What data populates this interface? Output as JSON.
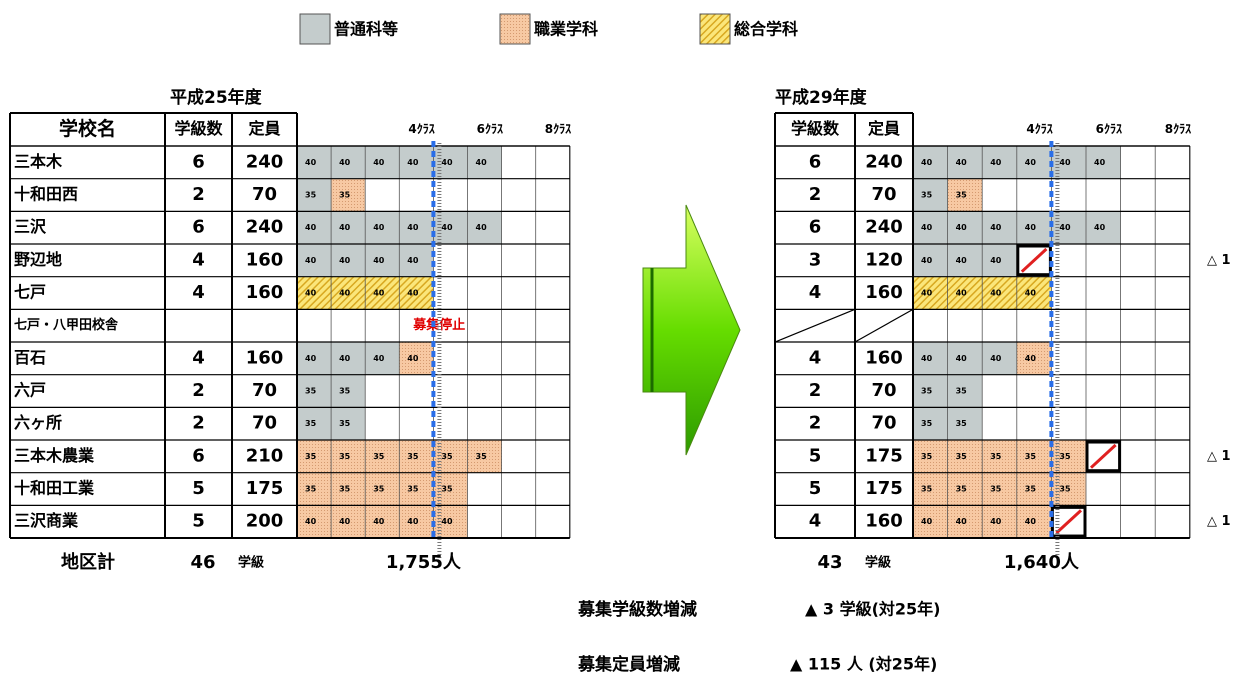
{
  "legend": [
    "普通科等",
    "職業学科",
    "総合学科"
  ],
  "left": {
    "year": "平成25年度",
    "headers": [
      "学校名",
      "学級数",
      "定員"
    ],
    "class_marks": [
      "4ｸﾗｽ",
      "6ｸﾗｽ",
      "8ｸﾗｽ"
    ],
    "rows": [
      {
        "name": "三本木",
        "classes": 6,
        "capacity": 240,
        "cells": [
          {
            "value": 40,
            "kind": 0
          },
          {
            "value": 40,
            "kind": 0
          },
          {
            "value": 40,
            "kind": 0
          },
          {
            "value": 40,
            "kind": 0
          },
          {
            "value": 40,
            "kind": 0
          },
          {
            "value": 40,
            "kind": 0
          }
        ]
      },
      {
        "name": "十和田西",
        "classes": 2,
        "capacity": 70,
        "cells": [
          {
            "value": 35,
            "kind": 0
          },
          {
            "value": 35,
            "kind": 1
          }
        ]
      },
      {
        "name": "三沢",
        "classes": 6,
        "capacity": 240,
        "cells": [
          {
            "value": 40,
            "kind": 0
          },
          {
            "value": 40,
            "kind": 0
          },
          {
            "value": 40,
            "kind": 0
          },
          {
            "value": 40,
            "kind": 0
          },
          {
            "value": 40,
            "kind": 0
          },
          {
            "value": 40,
            "kind": 0
          }
        ]
      },
      {
        "name": "野辺地",
        "classes": 4,
        "capacity": 160,
        "cells": [
          {
            "value": 40,
            "kind": 0
          },
          {
            "value": 40,
            "kind": 0
          },
          {
            "value": 40,
            "kind": 0
          },
          {
            "value": 40,
            "kind": 0
          }
        ]
      },
      {
        "name": "七戸",
        "classes": 4,
        "capacity": 160,
        "cells": [
          {
            "value": 40,
            "kind": 2
          },
          {
            "value": 40,
            "kind": 2
          },
          {
            "value": 40,
            "kind": 2
          },
          {
            "value": 40,
            "kind": 2
          }
        ]
      },
      {
        "name": "七戸・八甲田校舎",
        "classes": null,
        "capacity": null,
        "cells": [],
        "note": "募集停止"
      },
      {
        "name": "百石",
        "classes": 4,
        "capacity": 160,
        "cells": [
          {
            "value": 40,
            "kind": 0
          },
          {
            "value": 40,
            "kind": 0
          },
          {
            "value": 40,
            "kind": 0
          },
          {
            "value": 40,
            "kind": 1
          }
        ]
      },
      {
        "name": "六戸",
        "classes": 2,
        "capacity": 70,
        "cells": [
          {
            "value": 35,
            "kind": 0
          },
          {
            "value": 35,
            "kind": 0
          }
        ]
      },
      {
        "name": "六ヶ所",
        "classes": 2,
        "capacity": 70,
        "cells": [
          {
            "value": 35,
            "kind": 0
          },
          {
            "value": 35,
            "kind": 0
          }
        ]
      },
      {
        "name": "三本木農業",
        "classes": 6,
        "capacity": 210,
        "cells": [
          {
            "value": 35,
            "kind": 1
          },
          {
            "value": 35,
            "kind": 1
          },
          {
            "value": 35,
            "kind": 1
          },
          {
            "value": 35,
            "kind": 1
          },
          {
            "value": 35,
            "kind": 1
          },
          {
            "value": 35,
            "kind": 1
          }
        ]
      },
      {
        "name": "十和田工業",
        "classes": 5,
        "capacity": 175,
        "cells": [
          {
            "value": 35,
            "kind": 1
          },
          {
            "value": 35,
            "kind": 1
          },
          {
            "value": 35,
            "kind": 1
          },
          {
            "value": 35,
            "kind": 1
          },
          {
            "value": 35,
            "kind": 1
          }
        ]
      },
      {
        "name": "三沢商業",
        "classes": 5,
        "capacity": 200,
        "cells": [
          {
            "value": 40,
            "kind": 1
          },
          {
            "value": 40,
            "kind": 1
          },
          {
            "value": 40,
            "kind": 1
          },
          {
            "value": 40,
            "kind": 1
          },
          {
            "value": 40,
            "kind": 1
          }
        ]
      }
    ],
    "total_label": "地区計",
    "total_classes": 46,
    "total_unit": "学級",
    "total_capacity": "1,755人"
  },
  "right": {
    "year": "平成29年度",
    "headers": [
      "学級数",
      "定員"
    ],
    "class_marks": [
      "4ｸﾗｽ",
      "6ｸﾗｽ",
      "8ｸﾗｽ"
    ],
    "rows": [
      {
        "classes": 6,
        "capacity": 240,
        "cells": [
          {
            "value": 40,
            "kind": 0
          },
          {
            "value": 40,
            "kind": 0
          },
          {
            "value": 40,
            "kind": 0
          },
          {
            "value": 40,
            "kind": 0
          },
          {
            "value": 40,
            "kind": 0
          },
          {
            "value": 40,
            "kind": 0
          }
        ]
      },
      {
        "classes": 2,
        "capacity": 70,
        "cells": [
          {
            "value": 35,
            "kind": 0
          },
          {
            "value": 35,
            "kind": 1
          }
        ]
      },
      {
        "classes": 6,
        "capacity": 240,
        "cells": [
          {
            "value": 40,
            "kind": 0
          },
          {
            "value": 40,
            "kind": 0
          },
          {
            "value": 40,
            "kind": 0
          },
          {
            "value": 40,
            "kind": 0
          },
          {
            "value": 40,
            "kind": 0
          },
          {
            "value": 40,
            "kind": 0
          }
        ]
      },
      {
        "classes": 3,
        "capacity": 120,
        "cells": [
          {
            "value": 40,
            "kind": 0
          },
          {
            "value": 40,
            "kind": 0
          },
          {
            "value": 40,
            "kind": 0
          }
        ],
        "removed": 3,
        "change": "△ 1"
      },
      {
        "classes": 4,
        "capacity": 160,
        "cells": [
          {
            "value": 40,
            "kind": 2
          },
          {
            "value": 40,
            "kind": 2
          },
          {
            "value": 40,
            "kind": 2
          },
          {
            "value": 40,
            "kind": 2
          }
        ]
      },
      {
        "classes": null,
        "capacity": null,
        "cells": []
      },
      {
        "classes": 4,
        "capacity": 160,
        "cells": [
          {
            "value": 40,
            "kind": 0
          },
          {
            "value": 40,
            "kind": 0
          },
          {
            "value": 40,
            "kind": 0
          },
          {
            "value": 40,
            "kind": 1
          }
        ]
      },
      {
        "classes": 2,
        "capacity": 70,
        "cells": [
          {
            "value": 35,
            "kind": 0
          },
          {
            "value": 35,
            "kind": 0
          }
        ]
      },
      {
        "classes": 2,
        "capacity": 70,
        "cells": [
          {
            "value": 35,
            "kind": 0
          },
          {
            "value": 35,
            "kind": 0
          }
        ]
      },
      {
        "classes": 5,
        "capacity": 175,
        "cells": [
          {
            "value": 35,
            "kind": 1
          },
          {
            "value": 35,
            "kind": 1
          },
          {
            "value": 35,
            "kind": 1
          },
          {
            "value": 35,
            "kind": 1
          },
          {
            "value": 35,
            "kind": 1
          }
        ],
        "removed": 5,
        "change": "△ 1"
      },
      {
        "classes": 5,
        "capacity": 175,
        "cells": [
          {
            "value": 35,
            "kind": 1
          },
          {
            "value": 35,
            "kind": 1
          },
          {
            "value": 35,
            "kind": 1
          },
          {
            "value": 35,
            "kind": 1
          },
          {
            "value": 35,
            "kind": 1
          }
        ]
      },
      {
        "classes": 4,
        "capacity": 160,
        "cells": [
          {
            "value": 40,
            "kind": 1
          },
          {
            "value": 40,
            "kind": 1
          },
          {
            "value": 40,
            "kind": 1
          },
          {
            "value": 40,
            "kind": 1
          }
        ],
        "removed": 4,
        "change": "△ 1"
      }
    ],
    "total_classes": 43,
    "total_unit": "学級",
    "total_capacity": "1,640人"
  },
  "summary": [
    {
      "label": "募集学級数増減",
      "value": "▲ 3 学級(対25年)"
    },
    {
      "label": "募集定員増減",
      "value": "▲ 115 人 (対25年)"
    }
  ]
}
